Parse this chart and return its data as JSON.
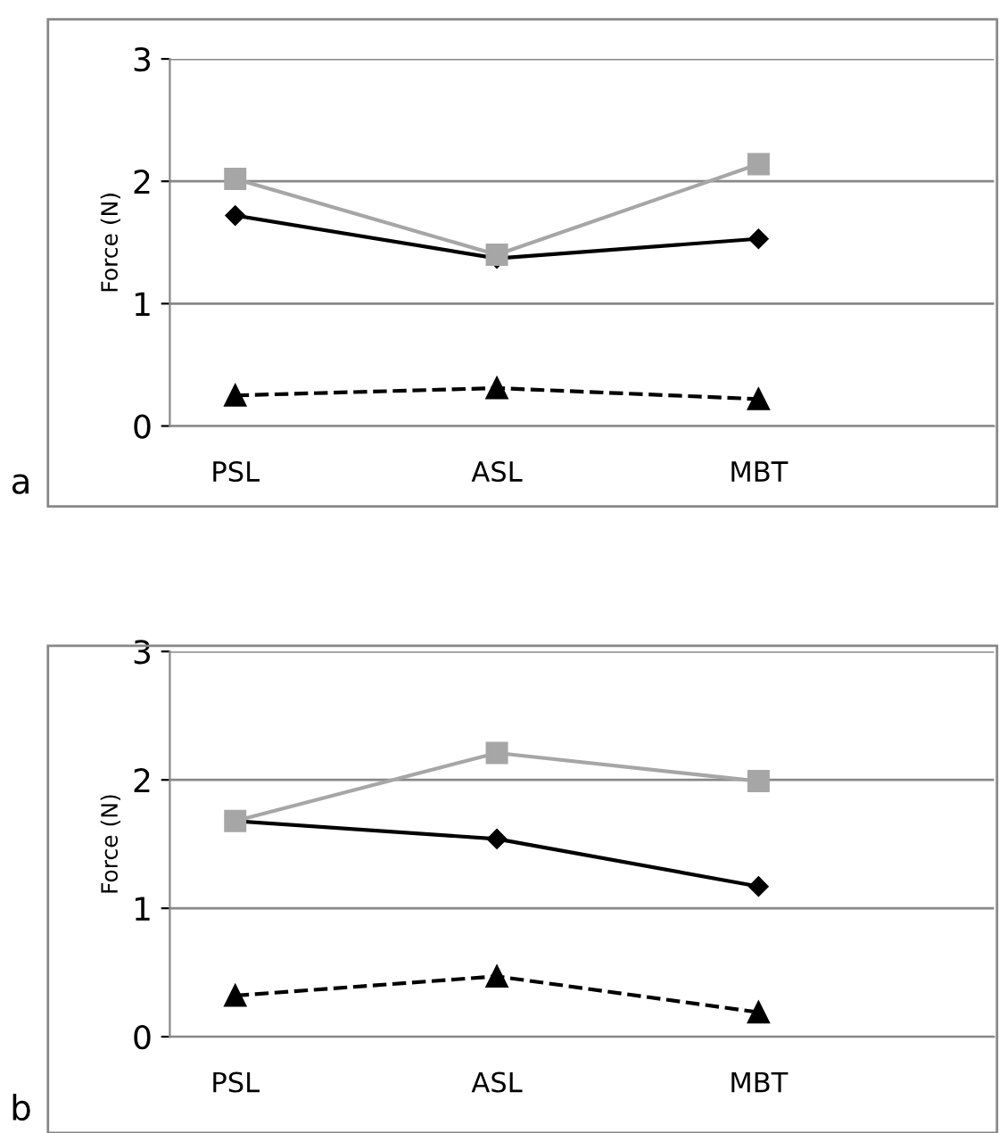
{
  "chart_data": [
    {
      "type": "line",
      "ylabel": "Force (N)",
      "annotations": [
        "a"
      ],
      "categories": [
        "PSL",
        "ASL",
        "MBT"
      ],
      "ylim": [
        0,
        3
      ],
      "yticks": [
        0,
        1,
        2,
        3
      ],
      "grid": "y",
      "series": [
        {
          "color": "#a6a6a6",
          "values": [
            2.02,
            1.4,
            2.14
          ],
          "marker": "square",
          "line_style": "solid"
        },
        {
          "color": "#000000",
          "values": [
            1.72,
            1.37,
            1.53
          ],
          "marker": "diamond",
          "line_style": "solid"
        },
        {
          "color": "#000000",
          "values": [
            0.25,
            0.31,
            0.22
          ],
          "marker": "triangle",
          "line_style": "dashed"
        }
      ]
    },
    {
      "type": "line",
      "ylabel": "Force (N)",
      "annotations": [
        "b"
      ],
      "categories": [
        "PSL",
        "ASL",
        "MBT"
      ],
      "ylim": [
        0,
        3
      ],
      "yticks": [
        0,
        1,
        2,
        3
      ],
      "grid": "y",
      "series": [
        {
          "color": "#a6a6a6",
          "values": [
            1.68,
            2.21,
            1.99
          ],
          "marker": "square",
          "line_style": "solid"
        },
        {
          "color": "#000000",
          "values": [
            1.68,
            1.54,
            1.17
          ],
          "marker": "diamond",
          "line_style": "solid"
        },
        {
          "color": "#000000",
          "values": [
            0.32,
            0.47,
            0.19
          ],
          "marker": "triangle",
          "line_style": "dashed"
        }
      ]
    }
  ]
}
